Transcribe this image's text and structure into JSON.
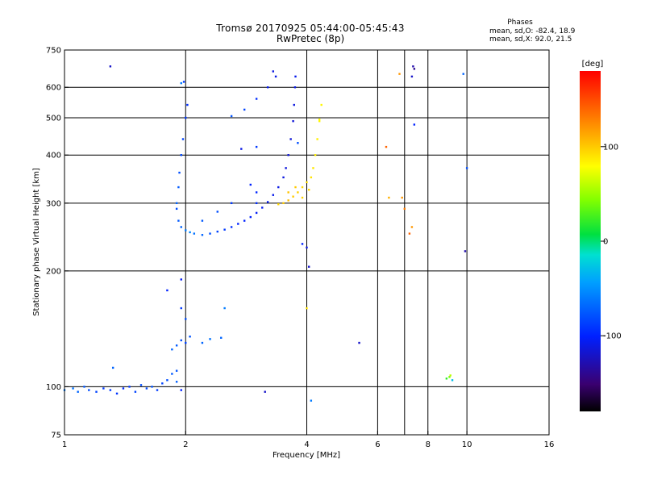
{
  "title": {
    "line1": "Tromsø 20170925 05:44:00-05:45:43",
    "line2": "RwPretec (8p)"
  },
  "stats": {
    "header": "Phases",
    "o_line": "mean, sd,O:  -82.4,  18.9",
    "x_line": "mean, sd,X:   92.0,  21.5"
  },
  "colorbar": {
    "label": "[deg]",
    "ticks": [
      "100",
      "0",
      "-100"
    ],
    "tick_values": [
      100,
      0,
      -100
    ],
    "range": [
      -180,
      180
    ]
  },
  "chart_data": {
    "type": "scatter",
    "title": "Tromsø 20170925 05:44:00-05:45:43",
    "subtitle": "RwPretec (8p)",
    "xlabel": "Frequency [MHz]",
    "ylabel": "Stationary phase Virtual Height [km]",
    "x_scale": "log",
    "y_scale": "log",
    "xlim": [
      1,
      16
    ],
    "ylim": [
      75,
      750
    ],
    "x_ticks": [
      1,
      2,
      4,
      6,
      8,
      10,
      16
    ],
    "y_ticks": [
      75,
      100,
      200,
      300,
      400,
      500,
      600,
      750
    ],
    "x_gridlines": [
      2,
      4,
      6,
      7,
      8,
      10
    ],
    "y_gridlines": [
      100,
      200,
      300,
      400,
      500,
      600
    ],
    "grid": true,
    "colorbar_label": "[deg]",
    "series": [
      {
        "points": [
          [
            1.0,
            98,
            -60
          ],
          [
            1.05,
            99,
            -65
          ],
          [
            1.08,
            97,
            -70
          ],
          [
            1.12,
            100,
            -75
          ],
          [
            1.15,
            98,
            -80
          ],
          [
            1.2,
            97,
            -85
          ],
          [
            1.25,
            99,
            -90
          ],
          [
            1.3,
            98,
            -88
          ],
          [
            1.35,
            96,
            -92
          ],
          [
            1.4,
            99,
            -95
          ],
          [
            1.45,
            100,
            -90
          ],
          [
            1.5,
            97,
            -85
          ],
          [
            1.55,
            101,
            -80
          ],
          [
            1.6,
            99,
            -82
          ],
          [
            1.65,
            100,
            -78
          ],
          [
            1.7,
            98,
            -88
          ],
          [
            1.75,
            102,
            -85
          ],
          [
            1.8,
            104,
            -80
          ],
          [
            1.85,
            108,
            -75
          ],
          [
            1.9,
            110,
            -78
          ],
          [
            1.32,
            112,
            -70
          ],
          [
            1.95,
            98,
            -100
          ],
          [
            1.85,
            125,
            -70
          ],
          [
            1.9,
            128,
            -75
          ],
          [
            1.95,
            132,
            -80
          ],
          [
            2.0,
            130,
            -85
          ],
          [
            2.05,
            135,
            -78
          ],
          [
            2.2,
            130,
            -70
          ],
          [
            2.3,
            133,
            -65
          ],
          [
            2.45,
            134,
            -70
          ],
          [
            2.5,
            160,
            -60
          ],
          [
            1.95,
            160,
            -90
          ],
          [
            1.8,
            178,
            -100
          ],
          [
            1.95,
            190,
            -105
          ],
          [
            2.0,
            150,
            -80
          ],
          [
            1.9,
            103,
            -72
          ]
        ]
      },
      {
        "points": [
          [
            1.9,
            290,
            -80
          ],
          [
            1.92,
            270,
            -75
          ],
          [
            1.95,
            260,
            -70
          ],
          [
            2.0,
            255,
            -60
          ],
          [
            2.05,
            252,
            -55
          ],
          [
            2.1,
            250,
            -65
          ],
          [
            2.2,
            248,
            -70
          ],
          [
            2.3,
            250,
            -80
          ],
          [
            2.4,
            253,
            -85
          ],
          [
            2.5,
            256,
            -90
          ],
          [
            2.6,
            260,
            -95
          ],
          [
            2.7,
            265,
            -100
          ],
          [
            2.8,
            270,
            -100
          ],
          [
            2.9,
            276,
            -102
          ],
          [
            3.0,
            283,
            -104
          ],
          [
            3.1,
            292,
            -105
          ],
          [
            3.2,
            302,
            -106
          ],
          [
            3.3,
            315,
            -108
          ],
          [
            3.4,
            330,
            -110
          ],
          [
            3.5,
            350,
            -112
          ],
          [
            3.55,
            370,
            -113
          ],
          [
            3.6,
            400,
            -114
          ],
          [
            3.65,
            440,
            -115
          ],
          [
            3.7,
            490,
            -115
          ],
          [
            3.72,
            540,
            -112
          ],
          [
            3.74,
            600,
            -110
          ],
          [
            3.75,
            640,
            -108
          ],
          [
            1.9,
            300,
            -70
          ],
          [
            1.92,
            330,
            -75
          ],
          [
            1.93,
            360,
            -80
          ],
          [
            1.95,
            400,
            -82
          ],
          [
            1.97,
            440,
            -85
          ],
          [
            2.0,
            500,
            -90
          ],
          [
            2.02,
            540,
            -95
          ],
          [
            1.98,
            620,
            -88
          ],
          [
            2.6,
            505,
            -78
          ],
          [
            2.8,
            525,
            -85
          ],
          [
            3.0,
            560,
            -95
          ],
          [
            3.2,
            600,
            -105
          ],
          [
            3.35,
            640,
            -110
          ],
          [
            3.3,
            660,
            -112
          ],
          [
            2.2,
            270,
            -75
          ],
          [
            2.4,
            285,
            -80
          ],
          [
            2.6,
            300,
            -90
          ],
          [
            3.0,
            300,
            -95
          ],
          [
            2.75,
            415,
            -110
          ],
          [
            2.9,
            335,
            -100
          ],
          [
            3.0,
            320,
            -98
          ]
        ]
      },
      {
        "points": [
          [
            3.4,
            298,
            95
          ],
          [
            3.5,
            300,
            100
          ],
          [
            3.6,
            305,
            105
          ],
          [
            3.7,
            312,
            100
          ],
          [
            3.8,
            320,
            98
          ],
          [
            3.9,
            330,
            95
          ],
          [
            4.0,
            340,
            92
          ],
          [
            4.1,
            350,
            90
          ],
          [
            4.15,
            370,
            88
          ],
          [
            4.2,
            400,
            86
          ],
          [
            4.25,
            440,
            85
          ],
          [
            4.3,
            490,
            83
          ],
          [
            4.35,
            540,
            82
          ],
          [
            4.3,
            495,
            80
          ],
          [
            3.9,
            310,
            96
          ],
          [
            3.75,
            330,
            100
          ],
          [
            3.6,
            320,
            102
          ],
          [
            4.0,
            160,
            90
          ],
          [
            4.05,
            325,
            94
          ]
        ]
      },
      {
        "points": [
          [
            1.3,
            680,
            -120
          ],
          [
            1.95,
            615,
            -60
          ],
          [
            3.0,
            420,
            -90
          ],
          [
            3.8,
            430,
            -80
          ],
          [
            3.9,
            235,
            -100
          ],
          [
            4.0,
            230,
            -110
          ],
          [
            4.05,
            205,
            -120
          ],
          [
            3.15,
            97,
            -120
          ],
          [
            4.1,
            92,
            -60
          ],
          [
            5.4,
            130,
            -120
          ],
          [
            6.3,
            420,
            140
          ],
          [
            6.8,
            650,
            120
          ],
          [
            6.4,
            310,
            110
          ],
          [
            6.9,
            310,
            120
          ],
          [
            7.0,
            290,
            130
          ],
          [
            7.2,
            250,
            140
          ],
          [
            7.3,
            640,
            -120
          ],
          [
            7.35,
            680,
            -130
          ],
          [
            7.4,
            670,
            -140
          ],
          [
            7.4,
            480,
            -100
          ],
          [
            7.3,
            260,
            120
          ],
          [
            9.8,
            650,
            -70
          ],
          [
            10.0,
            370,
            -80
          ],
          [
            9.9,
            225,
            -130
          ],
          [
            8.9,
            105,
            20
          ],
          [
            9.05,
            106,
            40
          ],
          [
            9.2,
            104,
            -30
          ],
          [
            9.1,
            107,
            60
          ]
        ]
      }
    ]
  }
}
